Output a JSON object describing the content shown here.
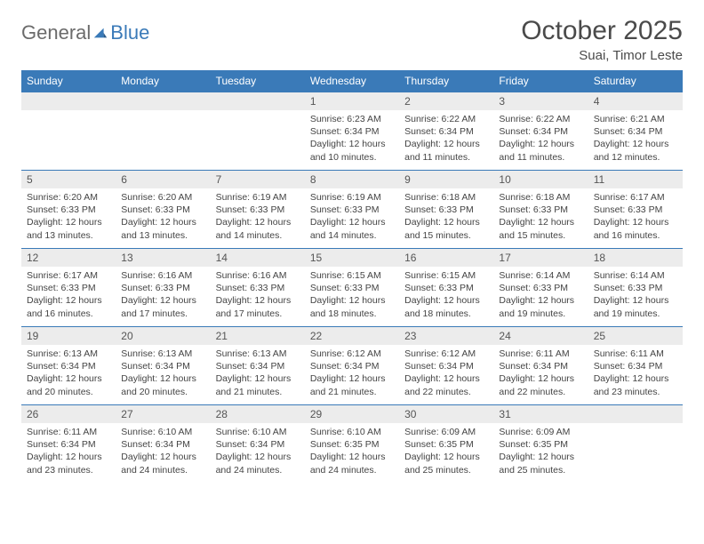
{
  "logo": {
    "general": "General",
    "blue": "Blue"
  },
  "title": "October 2025",
  "location": "Suai, Timor Leste",
  "colors": {
    "header_bg": "#3a7ab8",
    "header_text": "#ffffff",
    "daynum_bg": "#ececec",
    "body_text": "#444444",
    "border": "#3a7ab8"
  },
  "weekdays": [
    "Sunday",
    "Monday",
    "Tuesday",
    "Wednesday",
    "Thursday",
    "Friday",
    "Saturday"
  ],
  "weeks": [
    [
      null,
      null,
      null,
      {
        "n": "1",
        "sr": "6:23 AM",
        "ss": "6:34 PM",
        "dh": "12",
        "dm": "10"
      },
      {
        "n": "2",
        "sr": "6:22 AM",
        "ss": "6:34 PM",
        "dh": "12",
        "dm": "11"
      },
      {
        "n": "3",
        "sr": "6:22 AM",
        "ss": "6:34 PM",
        "dh": "12",
        "dm": "11"
      },
      {
        "n": "4",
        "sr": "6:21 AM",
        "ss": "6:34 PM",
        "dh": "12",
        "dm": "12"
      }
    ],
    [
      {
        "n": "5",
        "sr": "6:20 AM",
        "ss": "6:33 PM",
        "dh": "12",
        "dm": "13"
      },
      {
        "n": "6",
        "sr": "6:20 AM",
        "ss": "6:33 PM",
        "dh": "12",
        "dm": "13"
      },
      {
        "n": "7",
        "sr": "6:19 AM",
        "ss": "6:33 PM",
        "dh": "12",
        "dm": "14"
      },
      {
        "n": "8",
        "sr": "6:19 AM",
        "ss": "6:33 PM",
        "dh": "12",
        "dm": "14"
      },
      {
        "n": "9",
        "sr": "6:18 AM",
        "ss": "6:33 PM",
        "dh": "12",
        "dm": "15"
      },
      {
        "n": "10",
        "sr": "6:18 AM",
        "ss": "6:33 PM",
        "dh": "12",
        "dm": "15"
      },
      {
        "n": "11",
        "sr": "6:17 AM",
        "ss": "6:33 PM",
        "dh": "12",
        "dm": "16"
      }
    ],
    [
      {
        "n": "12",
        "sr": "6:17 AM",
        "ss": "6:33 PM",
        "dh": "12",
        "dm": "16"
      },
      {
        "n": "13",
        "sr": "6:16 AM",
        "ss": "6:33 PM",
        "dh": "12",
        "dm": "17"
      },
      {
        "n": "14",
        "sr": "6:16 AM",
        "ss": "6:33 PM",
        "dh": "12",
        "dm": "17"
      },
      {
        "n": "15",
        "sr": "6:15 AM",
        "ss": "6:33 PM",
        "dh": "12",
        "dm": "18"
      },
      {
        "n": "16",
        "sr": "6:15 AM",
        "ss": "6:33 PM",
        "dh": "12",
        "dm": "18"
      },
      {
        "n": "17",
        "sr": "6:14 AM",
        "ss": "6:33 PM",
        "dh": "12",
        "dm": "19"
      },
      {
        "n": "18",
        "sr": "6:14 AM",
        "ss": "6:33 PM",
        "dh": "12",
        "dm": "19"
      }
    ],
    [
      {
        "n": "19",
        "sr": "6:13 AM",
        "ss": "6:34 PM",
        "dh": "12",
        "dm": "20"
      },
      {
        "n": "20",
        "sr": "6:13 AM",
        "ss": "6:34 PM",
        "dh": "12",
        "dm": "20"
      },
      {
        "n": "21",
        "sr": "6:13 AM",
        "ss": "6:34 PM",
        "dh": "12",
        "dm": "21"
      },
      {
        "n": "22",
        "sr": "6:12 AM",
        "ss": "6:34 PM",
        "dh": "12",
        "dm": "21"
      },
      {
        "n": "23",
        "sr": "6:12 AM",
        "ss": "6:34 PM",
        "dh": "12",
        "dm": "22"
      },
      {
        "n": "24",
        "sr": "6:11 AM",
        "ss": "6:34 PM",
        "dh": "12",
        "dm": "22"
      },
      {
        "n": "25",
        "sr": "6:11 AM",
        "ss": "6:34 PM",
        "dh": "12",
        "dm": "23"
      }
    ],
    [
      {
        "n": "26",
        "sr": "6:11 AM",
        "ss": "6:34 PM",
        "dh": "12",
        "dm": "23"
      },
      {
        "n": "27",
        "sr": "6:10 AM",
        "ss": "6:34 PM",
        "dh": "12",
        "dm": "24"
      },
      {
        "n": "28",
        "sr": "6:10 AM",
        "ss": "6:34 PM",
        "dh": "12",
        "dm": "24"
      },
      {
        "n": "29",
        "sr": "6:10 AM",
        "ss": "6:35 PM",
        "dh": "12",
        "dm": "24"
      },
      {
        "n": "30",
        "sr": "6:09 AM",
        "ss": "6:35 PM",
        "dh": "12",
        "dm": "25"
      },
      {
        "n": "31",
        "sr": "6:09 AM",
        "ss": "6:35 PM",
        "dh": "12",
        "dm": "25"
      },
      null
    ]
  ],
  "labels": {
    "sunrise": "Sunrise: ",
    "sunset": "Sunset: ",
    "daylight_pre": "Daylight: ",
    "hours_and": " hours and ",
    "minutes": " minutes."
  }
}
